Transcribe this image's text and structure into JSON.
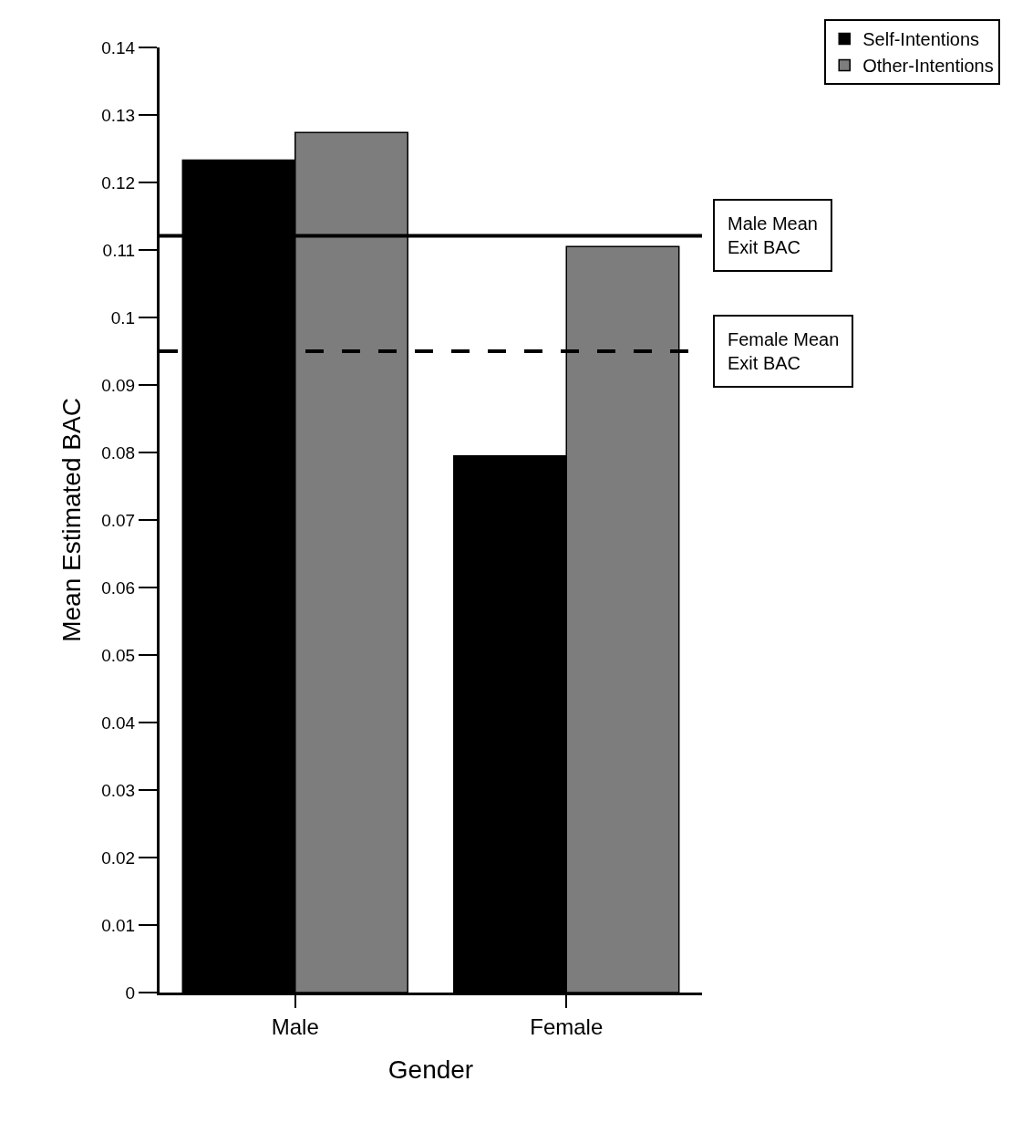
{
  "chart_data": {
    "type": "bar",
    "xlabel": "Gender",
    "ylabel": "Mean Estimated BAC",
    "categories": [
      "Male",
      "Female"
    ],
    "series": [
      {
        "name": "Self-Intentions",
        "color": "#000000",
        "values": [
          0.1233,
          0.0795
        ]
      },
      {
        "name": "Other-Intentions",
        "color": "#7d7d7d",
        "values": [
          0.1274,
          0.1105
        ]
      }
    ],
    "ylim": [
      0,
      0.14
    ],
    "yticks": [
      0,
      0.01,
      0.02,
      0.03,
      0.04,
      0.05,
      0.06,
      0.07,
      0.08,
      0.09,
      0.1,
      0.11,
      0.12,
      0.13,
      0.14
    ],
    "ref_lines": [
      {
        "axis": "y",
        "value": 0.1121,
        "label": "Male Mean\nExit BAC",
        "color": "#000000",
        "line_style": "solid"
      },
      {
        "axis": "y",
        "value": 0.095,
        "label": "Female Mean\nExit BAC",
        "color": "#000000",
        "line_style": "dashed"
      }
    ],
    "legend": "top right"
  }
}
